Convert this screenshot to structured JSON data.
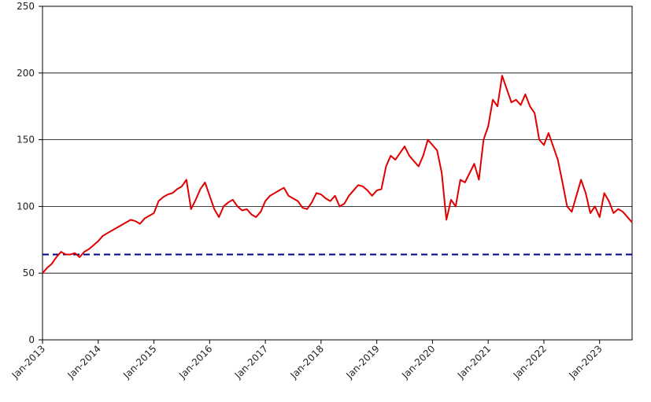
{
  "chart_data": {
    "type": "line",
    "x": [
      "Jan-2013",
      "Feb-2013",
      "Mar-2013",
      "Apr-2013",
      "May-2013",
      "Jun-2013",
      "Jul-2013",
      "Aug-2013",
      "Sep-2013",
      "Oct-2013",
      "Nov-2013",
      "Dec-2013",
      "Jan-2014",
      "Feb-2014",
      "Mar-2014",
      "Apr-2014",
      "May-2014",
      "Jun-2014",
      "Jul-2014",
      "Aug-2014",
      "Sep-2014",
      "Oct-2014",
      "Nov-2014",
      "Dec-2014",
      "Jan-2015",
      "Feb-2015",
      "Mar-2015",
      "Apr-2015",
      "May-2015",
      "Jun-2015",
      "Jul-2015",
      "Aug-2015",
      "Sep-2015",
      "Oct-2015",
      "Nov-2015",
      "Dec-2015",
      "Jan-2016",
      "Feb-2016",
      "Mar-2016",
      "Apr-2016",
      "May-2016",
      "Jun-2016",
      "Jul-2016",
      "Aug-2016",
      "Sep-2016",
      "Oct-2016",
      "Nov-2016",
      "Dec-2016",
      "Jan-2017",
      "Feb-2017",
      "Mar-2017",
      "Apr-2017",
      "May-2017",
      "Jun-2017",
      "Jul-2017",
      "Aug-2017",
      "Sep-2017",
      "Oct-2017",
      "Nov-2017",
      "Dec-2017",
      "Jan-2018",
      "Feb-2018",
      "Mar-2018",
      "Apr-2018",
      "May-2018",
      "Jun-2018",
      "Jul-2018",
      "Aug-2018",
      "Sep-2018",
      "Oct-2018",
      "Nov-2018",
      "Dec-2018",
      "Jan-2019",
      "Feb-2019",
      "Mar-2019",
      "Apr-2019",
      "May-2019",
      "Jun-2019",
      "Jul-2019",
      "Aug-2019",
      "Sep-2019",
      "Oct-2019",
      "Nov-2019",
      "Dec-2019",
      "Jan-2020",
      "Feb-2020",
      "Mar-2020",
      "Apr-2020",
      "May-2020",
      "Jun-2020",
      "Jul-2020",
      "Aug-2020",
      "Sep-2020",
      "Oct-2020",
      "Nov-2020",
      "Dec-2020",
      "Jan-2021",
      "Feb-2021",
      "Mar-2021",
      "Apr-2021",
      "May-2021",
      "Jun-2021",
      "Jul-2021",
      "Aug-2021",
      "Sep-2021",
      "Oct-2021",
      "Nov-2021",
      "Dec-2021",
      "Jan-2022",
      "Feb-2022",
      "Mar-2022",
      "Apr-2022",
      "May-2022",
      "Jun-2022",
      "Jul-2022",
      "Aug-2022",
      "Sep-2022",
      "Oct-2022",
      "Nov-2022",
      "Dec-2022",
      "Jan-2023",
      "Feb-2023",
      "Mar-2023",
      "Apr-2023",
      "May-2023",
      "Jun-2023",
      "Jul-2023",
      "Aug-2023"
    ],
    "series": [
      {
        "color": "#e00000",
        "values": [
          50,
          54,
          57,
          62,
          66,
          64,
          64,
          65,
          62,
          66,
          68,
          71,
          74,
          78,
          80,
          82,
          84,
          86,
          88,
          90,
          89,
          87,
          91,
          93,
          95,
          104,
          107,
          109,
          110,
          113,
          115,
          120,
          98,
          105,
          113,
          118,
          108,
          98,
          92,
          100,
          103,
          105,
          100,
          97,
          98,
          94,
          92,
          96,
          104,
          108,
          110,
          112,
          114,
          108,
          106,
          104,
          99,
          98,
          103,
          110,
          109,
          106,
          104,
          108,
          100,
          102,
          108,
          112,
          116,
          115,
          112,
          108,
          112,
          113,
          130,
          138,
          135,
          140,
          145,
          138,
          134,
          130,
          138,
          150,
          146,
          142,
          125,
          90,
          105,
          100,
          120,
          118,
          125,
          132,
          120,
          150,
          160,
          180,
          175,
          198,
          188,
          178,
          180,
          176,
          184,
          175,
          170,
          150,
          146,
          155,
          145,
          135,
          118,
          100,
          96,
          108,
          120,
          110,
          95,
          100,
          92,
          110,
          104,
          95,
          98,
          96,
          92,
          88
        ]
      }
    ],
    "reference_line": {
      "value": 64,
      "color": "#00008b",
      "style": "dashed"
    },
    "xticks": [
      "Jan-2013",
      "Jan-2014",
      "Jan-2015",
      "Jan-2016",
      "Jan-2017",
      "Jan-2018",
      "Jan-2019",
      "Jan-2020",
      "Jan-2021",
      "Jan-2022",
      "Jan-2023"
    ],
    "ylim": [
      0,
      250
    ],
    "yticks": [
      0,
      50,
      100,
      150,
      200,
      250
    ],
    "grid": true
  }
}
